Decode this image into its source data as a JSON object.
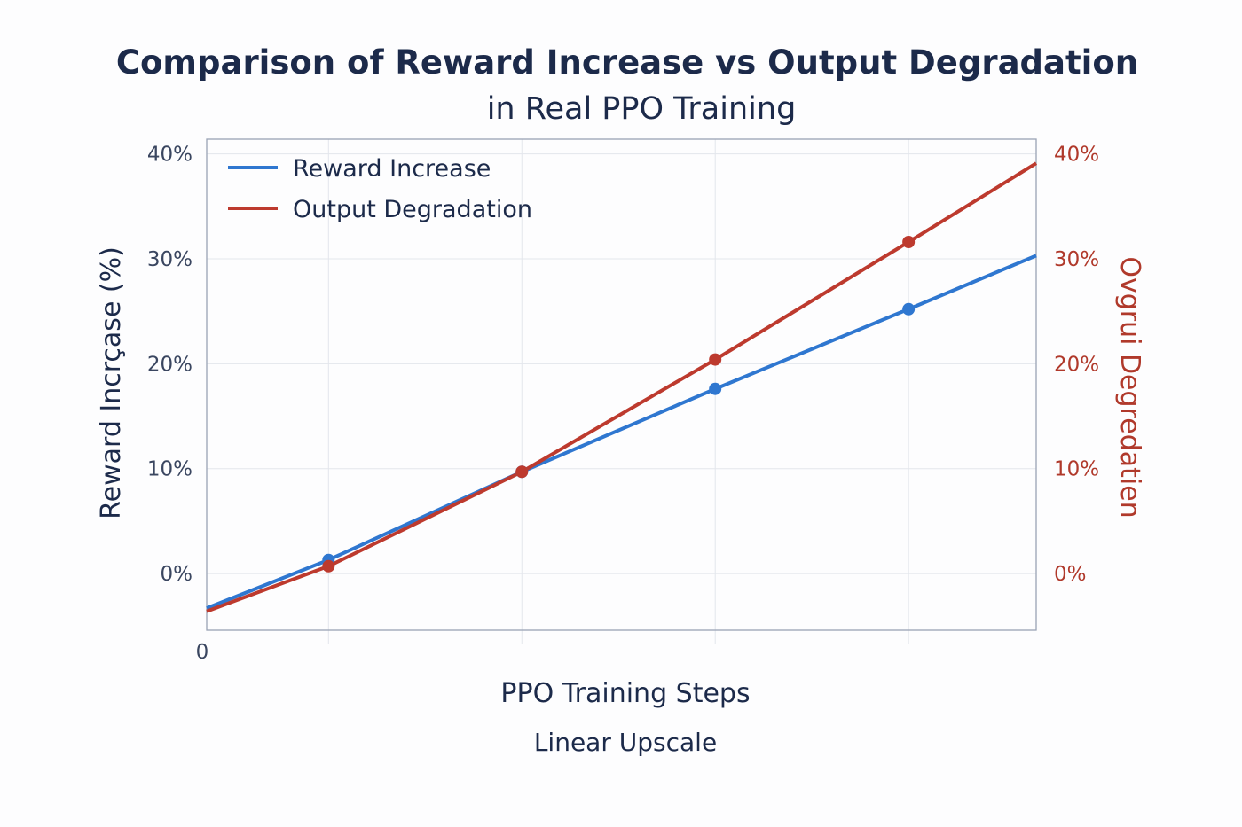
{
  "chart_data": {
    "type": "line",
    "title": "Comparison of Reward Increase vs Output Degradation",
    "subtitle": "in Real PPO Training",
    "xlabel": "PPO Training Steps",
    "xlabel_sub": "Linear Upscale",
    "ylabel": "Reward Incrçase (%)",
    "ylabel_right": "Ovgrui Degredatien",
    "x_tick_labels": [
      "0"
    ],
    "y_ticks": [
      "0%",
      "10%",
      "20%",
      "30%",
      "40%"
    ],
    "y_tick_values": [
      0,
      10,
      20,
      30,
      40
    ],
    "ylim": [
      -5.4,
      41.4
    ],
    "xlim": [
      0.37,
      4.66
    ],
    "x_grid": [
      1,
      2,
      3,
      4
    ],
    "grid": true,
    "legend_position": "top-left",
    "series": [
      {
        "name": "Reward Increase",
        "color": "#2f77d0",
        "x": [
          0.37,
          1,
          2,
          3,
          4,
          4.66
        ],
        "values": [
          -3.3,
          1.3,
          9.7,
          17.6,
          25.2,
          30.3
        ],
        "markers": [
          1,
          2,
          3,
          4
        ]
      },
      {
        "name": "Output Degradation",
        "color": "#bd3a2e",
        "x": [
          0.37,
          1,
          2,
          3,
          4,
          4.66
        ],
        "values": [
          -3.6,
          0.7,
          9.7,
          20.4,
          31.6,
          39.1
        ],
        "markers": [
          1,
          2,
          3,
          4
        ]
      }
    ]
  }
}
